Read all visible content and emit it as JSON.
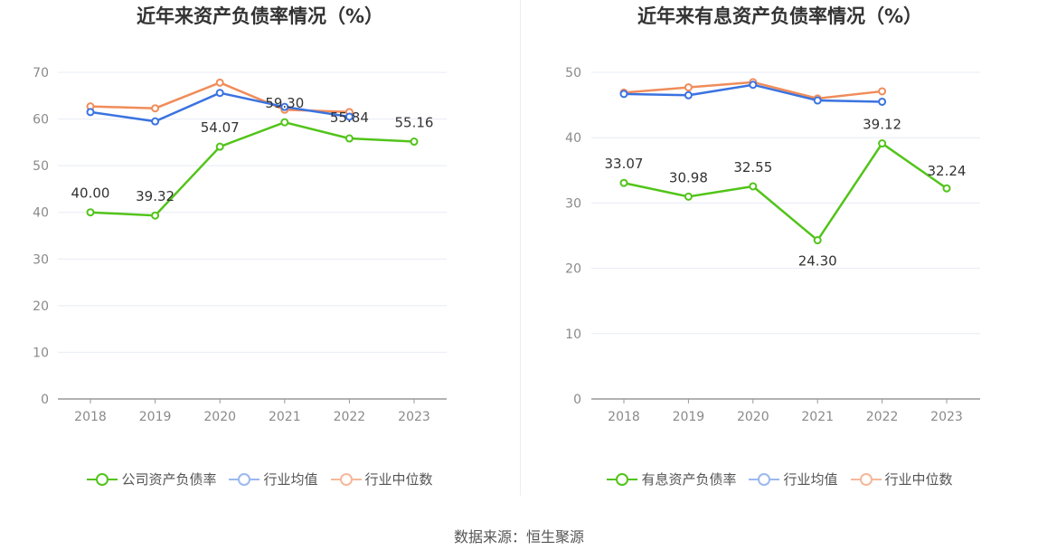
{
  "source": "数据来源：恒生聚源",
  "colors": {
    "company": "#52c41a",
    "industry_avg": "#3a73e0",
    "industry_median": "#f08c5a",
    "grid": "#e8ebf5",
    "axis": "#999999"
  },
  "chart_data": [
    {
      "type": "line",
      "title": "近年来资产负债率情况（%）",
      "x": [
        "2018",
        "2019",
        "2020",
        "2021",
        "2022",
        "2023"
      ],
      "ylim": [
        0,
        70
      ],
      "yticks": [
        "0",
        "10",
        "20",
        "30",
        "40",
        "50",
        "60",
        "70"
      ],
      "grid": true,
      "legend_position": "bottom",
      "series": [
        {
          "name": "公司资产负债率",
          "values": [
            40.0,
            39.32,
            54.07,
            59.3,
            55.84,
            55.16
          ],
          "labels": [
            "40.00",
            "39.32",
            "54.07",
            "59.30",
            "55.84",
            "55.16"
          ]
        },
        {
          "name": "行业均值",
          "values": [
            61.5,
            59.5,
            65.6,
            62.6,
            60.5,
            null
          ]
        },
        {
          "name": "行业中位数",
          "values": [
            62.7,
            62.3,
            67.8,
            62.0,
            61.5,
            null
          ]
        }
      ]
    },
    {
      "type": "line",
      "title": "近年来有息资产负债率情况（%）",
      "x": [
        "2018",
        "2019",
        "2020",
        "2021",
        "2022",
        "2023"
      ],
      "ylim": [
        0,
        50
      ],
      "yticks": [
        "0",
        "10",
        "20",
        "30",
        "40",
        "50"
      ],
      "grid": true,
      "legend_position": "bottom",
      "series": [
        {
          "name": "有息资产负债率",
          "values": [
            33.07,
            30.98,
            32.55,
            24.3,
            39.12,
            32.24
          ],
          "labels": [
            "33.07",
            "30.98",
            "32.55",
            "24.30",
            "39.12",
            "32.24"
          ]
        },
        {
          "name": "行业均值",
          "values": [
            46.7,
            46.5,
            48.1,
            45.7,
            45.5,
            null
          ]
        },
        {
          "name": "行业中位数",
          "values": [
            46.9,
            47.7,
            48.5,
            46.0,
            47.1,
            null
          ]
        }
      ]
    }
  ]
}
